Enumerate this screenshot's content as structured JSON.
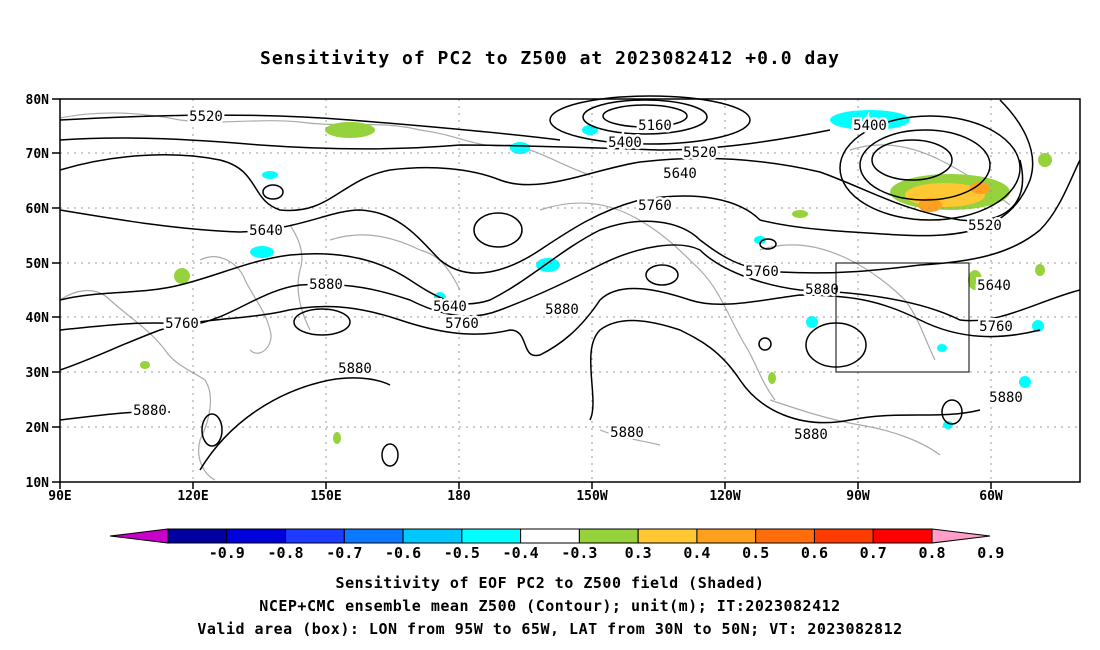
{
  "title": "Sensitivity of PC2 to Z500 at 2023082412 +0.0 day",
  "lat_labels": [
    "80N",
    "70N",
    "60N",
    "50N",
    "40N",
    "30N",
    "20N",
    "10N"
  ],
  "lon_labels": [
    "90E",
    "120E",
    "150E",
    "180",
    "150W",
    "120W",
    "90W",
    "60W"
  ],
  "contour_labels": [
    "5520",
    "5160",
    "5400",
    "5520",
    "5640",
    "5400",
    "5640",
    "5760",
    "5760",
    "5520",
    "5880",
    "5640",
    "5640",
    "5880",
    "5760",
    "5760",
    "5880",
    "5880",
    "5880",
    "5760",
    "5880",
    "5880",
    "5880",
    "5880"
  ],
  "colorbar": {
    "labels": [
      "-0.9",
      "-0.8",
      "-0.7",
      "-0.6",
      "-0.5",
      "-0.4",
      "-0.3",
      "0.3",
      "0.4",
      "0.5",
      "0.6",
      "0.7",
      "0.8",
      "0.9"
    ],
    "colors": [
      "#c800c8",
      "#0000a0",
      "#0000dc",
      "#1e3cff",
      "#0a78ff",
      "#00c8ff",
      "#00ffff",
      "#ffffff",
      "#96d23c",
      "#ffc832",
      "#ffa01e",
      "#ff6e0a",
      "#ff3c00",
      "#ff0000",
      "#ff9ec8"
    ]
  },
  "valid_box": {
    "lon_west": "95W",
    "lon_east": "65W",
    "lat_south": "30N",
    "lat_north": "50N"
  },
  "captions": {
    "line1": "Sensitivity of EOF PC2 to Z500 field (Shaded)",
    "line2": "NCEP+CMC ensemble mean Z500 (Contour); unit(m); IT:2023082412",
    "line3": "Valid area (box): LON from 95W to 65W, LAT from 30N to 50N; VT: 2023082812"
  }
}
